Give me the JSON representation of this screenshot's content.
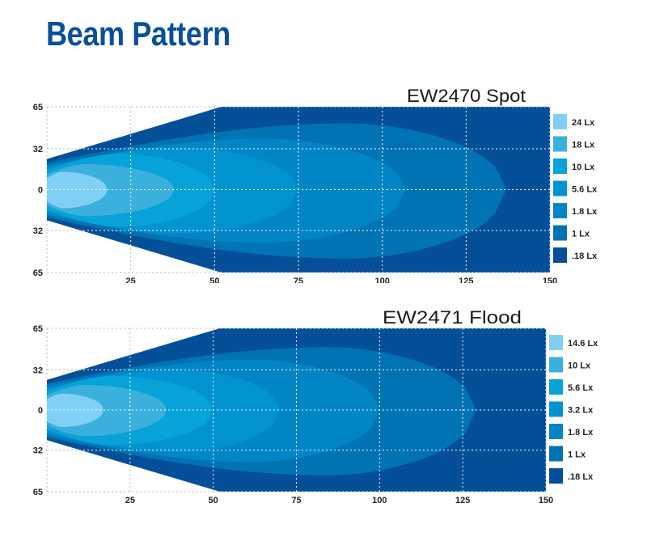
{
  "page_title": "Beam Pattern",
  "chart_data": [
    {
      "type": "area",
      "title": "EW2470 Spot",
      "xlabel": "",
      "ylabel": "",
      "xlim": [
        0,
        150
      ],
      "ylim": [
        -65,
        65
      ],
      "x_ticks": [
        "25",
        "50",
        "75",
        "100",
        "125",
        "150"
      ],
      "x_tick_values": [
        25,
        50,
        75,
        100,
        125,
        150
      ],
      "y_ticks": [
        "65",
        "32",
        "0",
        "32",
        "65"
      ],
      "y_tick_values": [
        65,
        32,
        0,
        -32,
        -65
      ],
      "grid": true,
      "legend_position": "right",
      "envelope": {
        "start_half_width": 24,
        "full_width_at_x": 52,
        "half_width": 65
      },
      "contours": [
        {
          "label": ".18 Lx",
          "color": "#054f98",
          "envelope": true
        },
        {
          "label": "1 Lx",
          "color": "#0073b3",
          "start": 21,
          "peak_x": 90,
          "half_width": 52,
          "tip_x": 137
        },
        {
          "label": "1.8 Lx",
          "color": "#0285c4",
          "start": 19,
          "peak_x": 65,
          "half_width": 40,
          "tip_x": 107
        },
        {
          "label": "5.6 Lx",
          "color": "#0093d0",
          "start": 17,
          "peak_x": 40,
          "half_width": 33,
          "tip_x": 75
        },
        {
          "label": "10 Lx",
          "color": "#07a2d8",
          "start": 15,
          "peak_x": 22,
          "half_width": 28,
          "tip_x": 50
        },
        {
          "label": "18 Lx",
          "color": "#3bb0dc",
          "start": 12,
          "peak_x": 12,
          "half_width": 20,
          "tip_x": 38
        },
        {
          "label": "24 Lx",
          "color": "#80d0f5",
          "start": 9,
          "peak_x": 5,
          "half_width": 14,
          "tip_x": 18
        }
      ]
    },
    {
      "type": "area",
      "title": "EW2471 Flood",
      "xlabel": "",
      "ylabel": "",
      "xlim": [
        0,
        150
      ],
      "ylim": [
        -65,
        65
      ],
      "x_ticks": [
        "25",
        "50",
        "75",
        "100",
        "125",
        "150"
      ],
      "x_tick_values": [
        25,
        50,
        75,
        100,
        125,
        150
      ],
      "y_ticks": [
        "65",
        "32",
        "0",
        "32",
        "65"
      ],
      "y_tick_values": [
        65,
        32,
        0,
        -32,
        -65
      ],
      "grid": true,
      "legend_position": "right",
      "envelope": {
        "start_half_width": 24,
        "full_width_at_x": 52,
        "half_width": 65
      },
      "contours": [
        {
          "label": ".18 Lx",
          "color": "#054f98",
          "envelope": true
        },
        {
          "label": "1 Lx",
          "color": "#0073b3",
          "start": 21,
          "peak_x": 85,
          "half_width": 50,
          "tip_x": 129
        },
        {
          "label": "1.8 Lx",
          "color": "#0285c4",
          "start": 19,
          "peak_x": 62,
          "half_width": 40,
          "tip_x": 100
        },
        {
          "label": "3.2 Lx",
          "color": "#0093d0",
          "start": 17,
          "peak_x": 40,
          "half_width": 32,
          "tip_x": 70
        },
        {
          "label": "5.6 Lx",
          "color": "#07a2d8",
          "start": 15,
          "peak_x": 20,
          "half_width": 27,
          "tip_x": 50
        },
        {
          "label": "10 Lx",
          "color": "#3bb0dc",
          "start": 12,
          "peak_x": 12,
          "half_width": 20,
          "tip_x": 36
        },
        {
          "label": "14.6 Lx",
          "color": "#80d0f5",
          "start": 9,
          "peak_x": 5,
          "half_width": 13,
          "tip_x": 17
        }
      ]
    }
  ]
}
